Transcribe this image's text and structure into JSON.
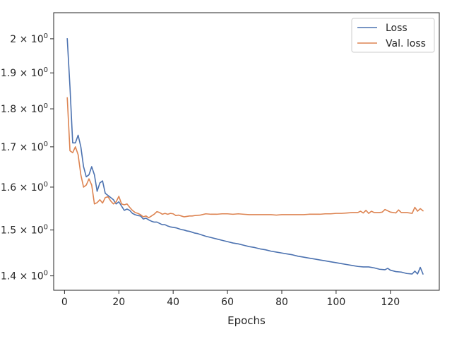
{
  "chart_data": {
    "type": "line",
    "xlabel": "Epochs",
    "ylabel": "",
    "title": "",
    "xlim": [
      -4,
      138
    ],
    "ylim": [
      1.37,
      2.08
    ],
    "y_scale": "log",
    "grid": false,
    "legend_position": "top-right",
    "xticks": [
      {
        "value": 0,
        "label": "0"
      },
      {
        "value": 20,
        "label": "20"
      },
      {
        "value": 40,
        "label": "40"
      },
      {
        "value": 60,
        "label": "60"
      },
      {
        "value": 80,
        "label": "80"
      },
      {
        "value": 100,
        "label": "100"
      },
      {
        "value": 120,
        "label": "120"
      }
    ],
    "yticks": [
      {
        "value": 1.4,
        "mantissa": "1.4",
        "label": "1.4 × 10⁰"
      },
      {
        "value": 1.5,
        "mantissa": "1.5",
        "label": "1.5 × 10⁰"
      },
      {
        "value": 1.6,
        "mantissa": "1.6",
        "label": "1.6 × 10⁰"
      },
      {
        "value": 1.7,
        "mantissa": "1.7",
        "label": "1.7 × 10⁰"
      },
      {
        "value": 1.8,
        "mantissa": "1.8",
        "label": "1.8 × 10⁰"
      },
      {
        "value": 1.9,
        "mantissa": "1.9",
        "label": "1.9 × 10⁰"
      },
      {
        "value": 2.0,
        "mantissa": "2",
        "label": "2 × 10⁰"
      }
    ],
    "tick_times": "×",
    "tick_base": "10",
    "tick_exp": "0",
    "series": [
      {
        "name": "Loss",
        "color": "#4c72b0",
        "x": [
          1,
          2,
          3,
          4,
          5,
          6,
          7,
          8,
          9,
          10,
          11,
          12,
          13,
          14,
          15,
          16,
          17,
          18,
          19,
          20,
          21,
          22,
          23,
          24,
          25,
          26,
          27,
          28,
          29,
          30,
          31,
          32,
          33,
          34,
          35,
          36,
          37,
          38,
          39,
          40,
          41,
          42,
          43,
          44,
          45,
          46,
          47,
          48,
          49,
          50,
          52,
          54,
          56,
          58,
          60,
          62,
          64,
          66,
          68,
          70,
          72,
          74,
          76,
          78,
          80,
          82,
          84,
          86,
          88,
          90,
          92,
          94,
          96,
          98,
          100,
          102,
          104,
          106,
          108,
          110,
          112,
          114,
          116,
          118,
          119,
          120,
          122,
          124,
          126,
          128,
          129,
          130,
          131,
          132
        ],
        "y": [
          2.0,
          1.86,
          1.71,
          1.71,
          1.73,
          1.7,
          1.65,
          1.625,
          1.63,
          1.65,
          1.63,
          1.59,
          1.61,
          1.615,
          1.585,
          1.58,
          1.575,
          1.57,
          1.56,
          1.565,
          1.555,
          1.545,
          1.548,
          1.545,
          1.538,
          1.535,
          1.533,
          1.532,
          1.525,
          1.527,
          1.523,
          1.52,
          1.518,
          1.518,
          1.515,
          1.512,
          1.512,
          1.509,
          1.507,
          1.506,
          1.505,
          1.503,
          1.501,
          1.5,
          1.498,
          1.497,
          1.495,
          1.493,
          1.492,
          1.49,
          1.486,
          1.483,
          1.48,
          1.477,
          1.474,
          1.471,
          1.469,
          1.466,
          1.463,
          1.461,
          1.458,
          1.456,
          1.453,
          1.451,
          1.449,
          1.447,
          1.445,
          1.442,
          1.44,
          1.438,
          1.436,
          1.434,
          1.432,
          1.43,
          1.428,
          1.426,
          1.424,
          1.422,
          1.42,
          1.419,
          1.419,
          1.417,
          1.414,
          1.413,
          1.416,
          1.412,
          1.409,
          1.408,
          1.405,
          1.404,
          1.41,
          1.404,
          1.418,
          1.404
        ]
      },
      {
        "name": "Val. loss",
        "color": "#dd8452",
        "x": [
          1,
          2,
          3,
          4,
          5,
          6,
          7,
          8,
          9,
          10,
          11,
          12,
          13,
          14,
          15,
          16,
          17,
          18,
          19,
          20,
          21,
          22,
          23,
          24,
          25,
          26,
          27,
          28,
          29,
          30,
          31,
          32,
          33,
          34,
          35,
          36,
          37,
          38,
          39,
          40,
          41,
          42,
          43,
          44,
          45,
          46,
          47,
          48,
          50,
          52,
          54,
          56,
          58,
          60,
          62,
          64,
          66,
          68,
          70,
          72,
          74,
          76,
          78,
          80,
          82,
          84,
          86,
          88,
          90,
          92,
          94,
          96,
          98,
          100,
          102,
          104,
          106,
          108,
          109,
          110,
          111,
          112,
          113,
          114,
          116,
          117,
          118,
          120,
          122,
          123,
          124,
          126,
          128,
          129,
          130,
          131,
          132
        ],
        "y": [
          1.83,
          1.69,
          1.685,
          1.7,
          1.68,
          1.63,
          1.6,
          1.605,
          1.62,
          1.605,
          1.56,
          1.563,
          1.57,
          1.562,
          1.575,
          1.577,
          1.567,
          1.56,
          1.565,
          1.578,
          1.56,
          1.558,
          1.56,
          1.552,
          1.545,
          1.54,
          1.538,
          1.535,
          1.53,
          1.532,
          1.528,
          1.532,
          1.536,
          1.542,
          1.54,
          1.536,
          1.538,
          1.536,
          1.538,
          1.537,
          1.533,
          1.534,
          1.532,
          1.53,
          1.531,
          1.532,
          1.532,
          1.533,
          1.534,
          1.537,
          1.536,
          1.536,
          1.537,
          1.537,
          1.536,
          1.537,
          1.536,
          1.535,
          1.535,
          1.535,
          1.535,
          1.535,
          1.534,
          1.535,
          1.535,
          1.535,
          1.535,
          1.535,
          1.536,
          1.536,
          1.536,
          1.537,
          1.537,
          1.538,
          1.538,
          1.539,
          1.54,
          1.54,
          1.543,
          1.539,
          1.545,
          1.538,
          1.543,
          1.54,
          1.54,
          1.541,
          1.547,
          1.541,
          1.539,
          1.546,
          1.54,
          1.54,
          1.538,
          1.552,
          1.543,
          1.549,
          1.544
        ]
      }
    ]
  }
}
